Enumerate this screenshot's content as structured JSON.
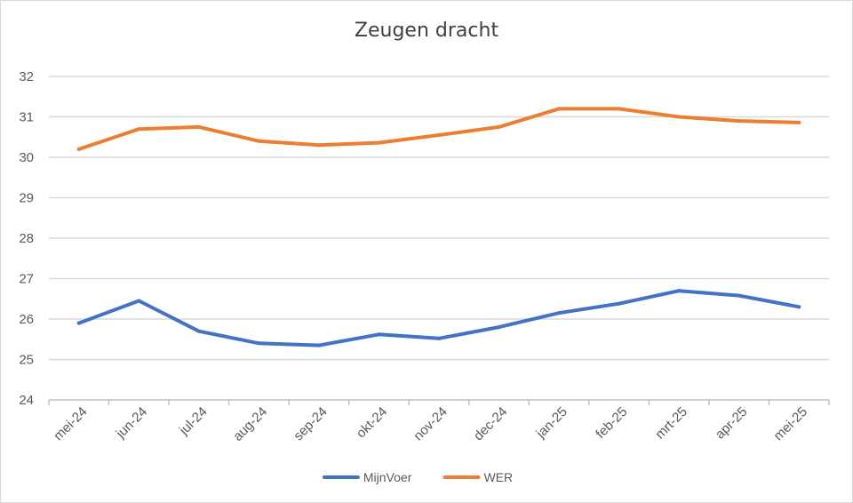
{
  "chart_data": {
    "type": "line",
    "title": "Zeugen dracht",
    "xlabel": "",
    "ylabel": "",
    "categories": [
      "mei-24",
      "jun-24",
      "jul-24",
      "aug-24",
      "sep-24",
      "okt-24",
      "nov-24",
      "dec-24",
      "jan-25",
      "feb-25",
      "mrt-25",
      "apr-25",
      "mei-25"
    ],
    "ylim": [
      24,
      32
    ],
    "yticks": [
      24,
      25,
      26,
      27,
      28,
      29,
      30,
      31,
      32
    ],
    "grid": true,
    "legend_position": "bottom",
    "series": [
      {
        "name": "MijnVoer",
        "color": "#4472c4",
        "values": [
          25.9,
          26.45,
          25.7,
          25.4,
          25.35,
          25.62,
          25.52,
          25.8,
          26.15,
          26.38,
          26.7,
          26.58,
          26.3
        ]
      },
      {
        "name": "WER",
        "color": "#ed7d31",
        "values": [
          30.2,
          30.7,
          30.75,
          30.4,
          30.3,
          30.36,
          30.55,
          30.75,
          31.2,
          31.2,
          31.0,
          30.9,
          30.86
        ]
      }
    ]
  }
}
